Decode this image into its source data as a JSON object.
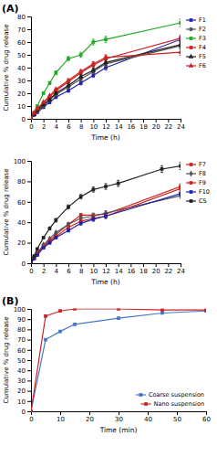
{
  "chart_data": [
    {
      "type": "line",
      "annotation": "(A)",
      "xlabel": "Time (h)",
      "ylabel": "Cumulative % drug release",
      "xlim": [
        0,
        24
      ],
      "ylim": [
        0,
        80
      ],
      "xticks": [
        0,
        2,
        4,
        6,
        8,
        10,
        12,
        14,
        16,
        18,
        20,
        22,
        24
      ],
      "yticks": [
        0,
        10,
        20,
        30,
        40,
        50,
        60,
        70,
        80
      ],
      "legend": "outside-right",
      "series": [
        {
          "name": "F1",
          "color": "#2222aa",
          "marker": "square",
          "x": [
            0,
            0.5,
            1,
            2,
            3,
            4,
            6,
            8,
            10,
            12,
            24
          ],
          "values": [
            0,
            3,
            5,
            9,
            13,
            17,
            22,
            28,
            34,
            40,
            62
          ],
          "errors": [
            0,
            0.5,
            0.6,
            0.8,
            1.0,
            1.2,
            1.3,
            1.5,
            1.6,
            2.0,
            2.5
          ]
        },
        {
          "name": "F2",
          "color": "#555555",
          "marker": "square",
          "x": [
            0,
            0.5,
            1,
            2,
            3,
            4,
            6,
            8,
            10,
            12,
            24
          ],
          "values": [
            0,
            3.5,
            6,
            10,
            15,
            19,
            25,
            31,
            37,
            43,
            57
          ],
          "errors": [
            0,
            0.5,
            0.6,
            0.8,
            1.0,
            1.2,
            1.3,
            1.5,
            1.6,
            2.0,
            2.5
          ]
        },
        {
          "name": "F3",
          "color": "#22aa22",
          "marker": "square",
          "x": [
            0,
            0.5,
            1,
            2,
            3,
            4,
            6,
            8,
            10,
            12,
            24
          ],
          "values": [
            0,
            5,
            10,
            20,
            28,
            36,
            47,
            50,
            60,
            62,
            75
          ],
          "errors": [
            0,
            0.5,
            0.7,
            1.0,
            1.2,
            1.5,
            1.8,
            2.0,
            2.2,
            2.5,
            3.0
          ]
        },
        {
          "name": "F4",
          "color": "#cc2222",
          "marker": "square",
          "x": [
            0,
            0.5,
            1,
            2,
            3,
            4,
            6,
            8,
            10,
            12,
            24
          ],
          "values": [
            0,
            4,
            7,
            12,
            17,
            22,
            29,
            36,
            42,
            47,
            63
          ],
          "errors": [
            0,
            0.5,
            0.6,
            0.8,
            1.0,
            1.2,
            1.3,
            1.5,
            1.6,
            2.0,
            2.5
          ]
        },
        {
          "name": "F5",
          "color": "#222222",
          "marker": "triangle",
          "x": [
            0,
            0.5,
            1,
            2,
            3,
            4,
            6,
            8,
            10,
            12,
            24
          ],
          "values": [
            0,
            3.5,
            6.5,
            11,
            15,
            20,
            26,
            33,
            38,
            44,
            58
          ],
          "errors": [
            0,
            0.5,
            0.6,
            0.8,
            1.0,
            1.2,
            1.3,
            1.5,
            1.6,
            2.0,
            2.5
          ]
        },
        {
          "name": "F6",
          "color": "#cc2222",
          "marker": "triangle",
          "x": [
            0,
            0.5,
            1,
            2,
            3,
            4,
            6,
            8,
            10,
            12,
            24
          ],
          "values": [
            0,
            4.5,
            8,
            13,
            18,
            23,
            30,
            37,
            43,
            48,
            52
          ],
          "errors": [
            0,
            0.5,
            0.6,
            0.8,
            1.0,
            1.2,
            1.3,
            1.5,
            1.6,
            2.0,
            2.5
          ]
        }
      ]
    },
    {
      "type": "line",
      "xlabel": "Time (h)",
      "ylabel": "Cumulative % drug release",
      "xlim": [
        0,
        24
      ],
      "ylim": [
        0,
        100
      ],
      "xticks": [
        0,
        2,
        4,
        6,
        8,
        10,
        12,
        14,
        16,
        18,
        20,
        22,
        24
      ],
      "yticks": [
        0,
        20,
        40,
        60,
        80,
        100
      ],
      "legend": "outside-right",
      "series": [
        {
          "name": "F7",
          "color": "#cc2222",
          "marker": "square",
          "x": [
            0,
            0.5,
            1,
            2,
            3,
            4,
            6,
            8,
            10,
            12,
            24
          ],
          "values": [
            0,
            5,
            9,
            17,
            22,
            28,
            38,
            47,
            47,
            48,
            75
          ],
          "errors": [
            0,
            0.5,
            0.7,
            1.0,
            1.2,
            1.3,
            1.5,
            1.7,
            2.0,
            2.2,
            2.5
          ]
        },
        {
          "name": "F8",
          "color": "#555555",
          "marker": "diamond",
          "x": [
            0,
            0.5,
            1,
            2,
            3,
            4,
            6,
            8,
            10,
            12,
            24
          ],
          "values": [
            0,
            5.5,
            10,
            18,
            24,
            30,
            38,
            44,
            46,
            49,
            66
          ],
          "errors": [
            0,
            0.5,
            0.7,
            1.0,
            1.2,
            1.3,
            1.5,
            1.7,
            2.0,
            2.2,
            2.5
          ]
        },
        {
          "name": "F9",
          "color": "#cc2222",
          "marker": "square",
          "x": [
            0,
            0.5,
            1,
            2,
            3,
            4,
            6,
            8,
            10,
            12,
            24
          ],
          "values": [
            0,
            5,
            9,
            16,
            21,
            26,
            35,
            41,
            44,
            46,
            73
          ],
          "errors": [
            0,
            0.5,
            0.7,
            1.0,
            1.2,
            1.3,
            1.5,
            1.7,
            2.0,
            2.2,
            2.5
          ]
        },
        {
          "name": "F10",
          "color": "#2222aa",
          "marker": "square",
          "x": [
            0,
            0.5,
            1,
            2,
            3,
            4,
            6,
            8,
            10,
            12,
            24
          ],
          "values": [
            0,
            4.5,
            8,
            15,
            20,
            25,
            32,
            39,
            43,
            46,
            68
          ],
          "errors": [
            0,
            0.5,
            0.7,
            1.0,
            1.2,
            1.3,
            1.5,
            1.7,
            2.0,
            2.2,
            2.5
          ]
        },
        {
          "name": "CS",
          "color": "#222222",
          "marker": "square",
          "x": [
            0,
            0.5,
            1,
            2,
            3,
            4,
            6,
            8,
            10,
            12,
            14,
            21,
            24
          ],
          "values": [
            0,
            7,
            14,
            25,
            34,
            42,
            55,
            65,
            72,
            75,
            78,
            92,
            95
          ],
          "errors": [
            0,
            0.5,
            0.8,
            1.0,
            1.5,
            1.8,
            2.0,
            2.2,
            2.5,
            2.8,
            3.0,
            3.2,
            3.5
          ]
        }
      ]
    },
    {
      "type": "line",
      "annotation": "(B)",
      "xlabel": "Time (min)",
      "ylabel": "Cumulative % drug release",
      "xlim": [
        0,
        60
      ],
      "ylim": [
        0,
        100
      ],
      "xticks": [
        0,
        10,
        20,
        30,
        40,
        50,
        60
      ],
      "yticks": [
        0,
        10,
        20,
        30,
        40,
        50,
        60,
        70,
        80,
        90,
        100
      ],
      "legend": "lower-right",
      "series": [
        {
          "name": "Coarse suspension",
          "color": "#4477cc",
          "marker": "square",
          "x": [
            0,
            5,
            10,
            15,
            30,
            45,
            60
          ],
          "values": [
            0,
            70,
            78,
            85,
            91,
            96,
            98
          ]
        },
        {
          "name": "Nano suspension",
          "color": "#cc2222",
          "marker": "square",
          "x": [
            0,
            5,
            10,
            15,
            30,
            45,
            60
          ],
          "values": [
            0,
            93,
            98,
            100,
            100,
            99,
            99
          ]
        }
      ]
    }
  ]
}
